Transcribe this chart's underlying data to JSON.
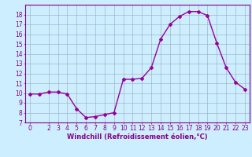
{
  "x": [
    0,
    1,
    2,
    3,
    4,
    5,
    6,
    7,
    8,
    9,
    10,
    11,
    12,
    13,
    14,
    15,
    16,
    17,
    18,
    19,
    20,
    21,
    22,
    23
  ],
  "y": [
    9.9,
    9.9,
    10.1,
    10.1,
    9.9,
    8.4,
    7.5,
    7.6,
    7.8,
    8.0,
    11.4,
    11.4,
    11.5,
    12.6,
    15.5,
    17.0,
    17.8,
    18.3,
    18.3,
    17.9,
    15.1,
    12.6,
    11.1,
    10.4
  ],
  "line_color": "#990099",
  "marker": "D",
  "marker_size": 2,
  "linewidth": 1.0,
  "xlabel": "Windchill (Refroidissement éolien,°C)",
  "xlabel_fontsize": 6.0,
  "xlim": [
    -0.5,
    23.5
  ],
  "ylim": [
    7,
    19
  ],
  "yticks": [
    7,
    8,
    9,
    10,
    11,
    12,
    13,
    14,
    15,
    16,
    17,
    18
  ],
  "xticks": [
    0,
    2,
    3,
    4,
    5,
    6,
    7,
    8,
    9,
    10,
    11,
    12,
    13,
    14,
    15,
    16,
    17,
    18,
    19,
    20,
    21,
    22,
    23
  ],
  "bg_color": "#cceeff",
  "grid_color": "#99aabb",
  "tick_fontsize": 5.5,
  "tick_color": "#880088",
  "axis_color": "#880088"
}
